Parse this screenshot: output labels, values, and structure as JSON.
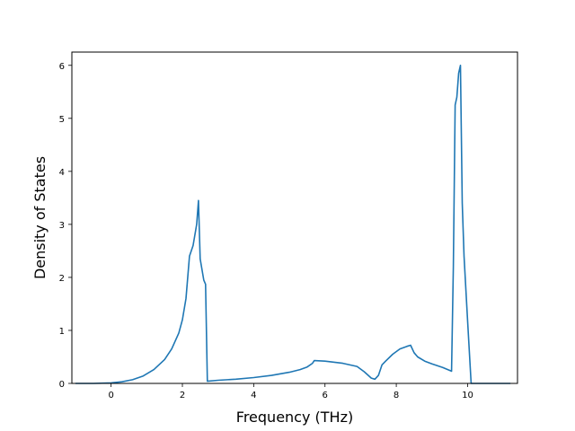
{
  "chart_data": {
    "type": "line",
    "title": "",
    "xlabel": "Frequency (THz)",
    "ylabel": "Density of States",
    "xlim": [
      -1.1,
      11.4
    ],
    "ylim": [
      0,
      6.25
    ],
    "xticks": [
      0,
      2,
      4,
      6,
      8,
      10
    ],
    "yticks": [
      0,
      1,
      2,
      3,
      4,
      5,
      6
    ],
    "grid": false,
    "legend": "none",
    "colors": {
      "line": "#1f77b4",
      "axes": "#000000"
    },
    "series": [
      {
        "x": [
          -1.0,
          -0.5,
          0.0,
          0.3,
          0.6,
          0.9,
          1.2,
          1.5,
          1.7,
          1.9,
          2.0,
          2.1,
          2.2,
          2.3,
          2.4,
          2.45,
          2.5,
          2.6,
          2.65,
          2.7,
          3.0,
          3.5,
          4.0,
          4.5,
          5.0,
          5.3,
          5.5,
          5.65,
          5.7,
          6.0,
          6.5,
          6.9,
          7.1,
          7.3,
          7.4,
          7.5,
          7.6,
          7.7,
          7.9,
          8.1,
          8.3,
          8.4,
          8.5,
          8.6,
          8.8,
          9.0,
          9.3,
          9.55,
          9.6,
          9.65,
          9.7,
          9.75,
          9.8,
          9.85,
          9.9,
          10.0,
          10.1,
          10.2,
          10.5,
          11.2
        ],
        "y": [
          0,
          0,
          0.01,
          0.03,
          0.07,
          0.14,
          0.26,
          0.45,
          0.65,
          0.95,
          1.2,
          1.6,
          2.4,
          2.6,
          3.0,
          3.45,
          2.35,
          1.95,
          1.87,
          0.04,
          0.06,
          0.08,
          0.11,
          0.15,
          0.21,
          0.26,
          0.31,
          0.38,
          0.43,
          0.42,
          0.38,
          0.32,
          0.22,
          0.1,
          0.08,
          0.15,
          0.35,
          0.42,
          0.55,
          0.65,
          0.7,
          0.72,
          0.58,
          0.5,
          0.42,
          0.37,
          0.3,
          0.23,
          2.2,
          5.25,
          5.4,
          5.85,
          6.0,
          3.4,
          2.4,
          1.2,
          0.0,
          0.0,
          0.0,
          0.0
        ]
      }
    ]
  }
}
